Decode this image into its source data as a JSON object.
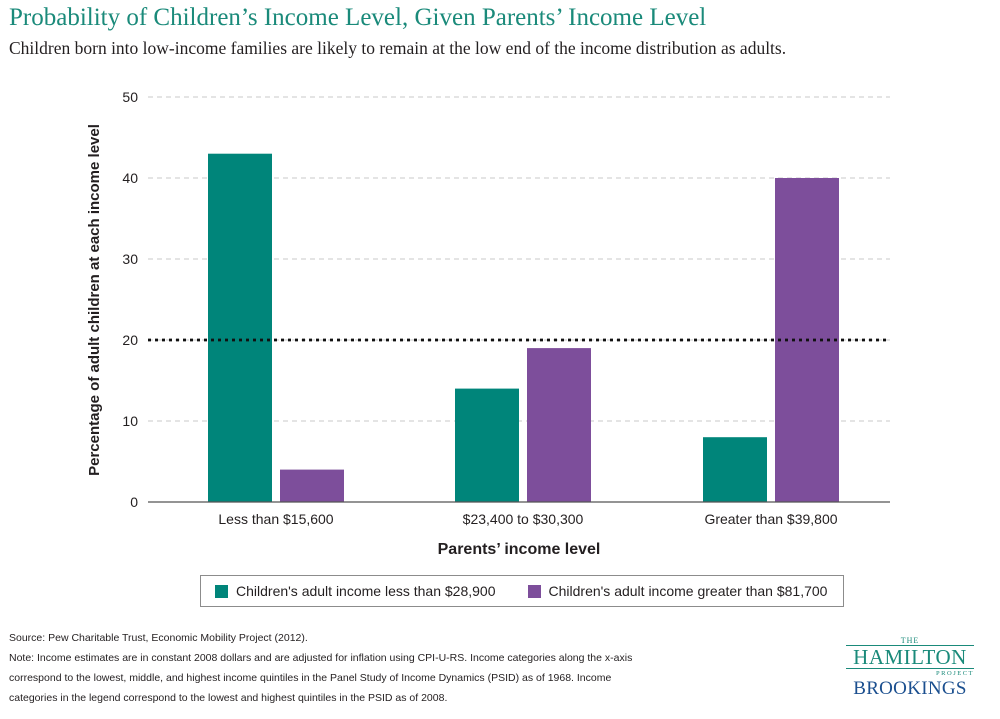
{
  "header": {
    "title": "Probability of Children’s Income Level, Given Parents’ Income Level",
    "subtitle": "Children born into low-income families are likely to remain at the low end of the income distribution as adults."
  },
  "chart_data": {
    "type": "bar",
    "title": "Probability of Children’s Income Level, Given Parents’ Income Level",
    "xlabel": "Parents’ income level",
    "ylabel": "Percentage of adult children at each income level",
    "categories": [
      "Less than $15,600",
      "$23,400 to $30,300",
      "Greater than $39,800"
    ],
    "series": [
      {
        "name": "Children's adult income less than $28,900",
        "values": [
          43,
          14,
          8
        ],
        "color": "#00857a"
      },
      {
        "name": "Children's adult income greater than $81,700",
        "values": [
          4,
          19,
          40
        ],
        "color": "#7d4e9b"
      }
    ],
    "ylim": [
      0,
      50
    ],
    "yticks": [
      0,
      10,
      20,
      30,
      40,
      50
    ],
    "reference_line": 20,
    "grid": true,
    "legend_position": "bottom"
  },
  "legend": {
    "items": [
      {
        "label": "Children's adult income less than $28,900",
        "color": "#00857a"
      },
      {
        "label": "Children's adult income greater than $81,700",
        "color": "#7d4e9b"
      }
    ]
  },
  "footer": {
    "source": "Source: Pew Charitable Trust, Economic Mobility Project (2012).",
    "note": "Note: Income estimates are in constant 2008 dollars and are adjusted for inflation using CPI-U-RS. Income categories along the x-axis correspond to the lowest, middle, and highest income quintiles in the Panel Study of Income Dynamics (PSID) as of 1968. Income categories in the legend correspond to the lowest and highest quintiles in the PSID as of 2008."
  },
  "logos": {
    "hamilton_the": "THE",
    "hamilton_name": "HAMILTON",
    "hamilton_project": "PROJECT",
    "brookings": "BROOKINGS"
  }
}
